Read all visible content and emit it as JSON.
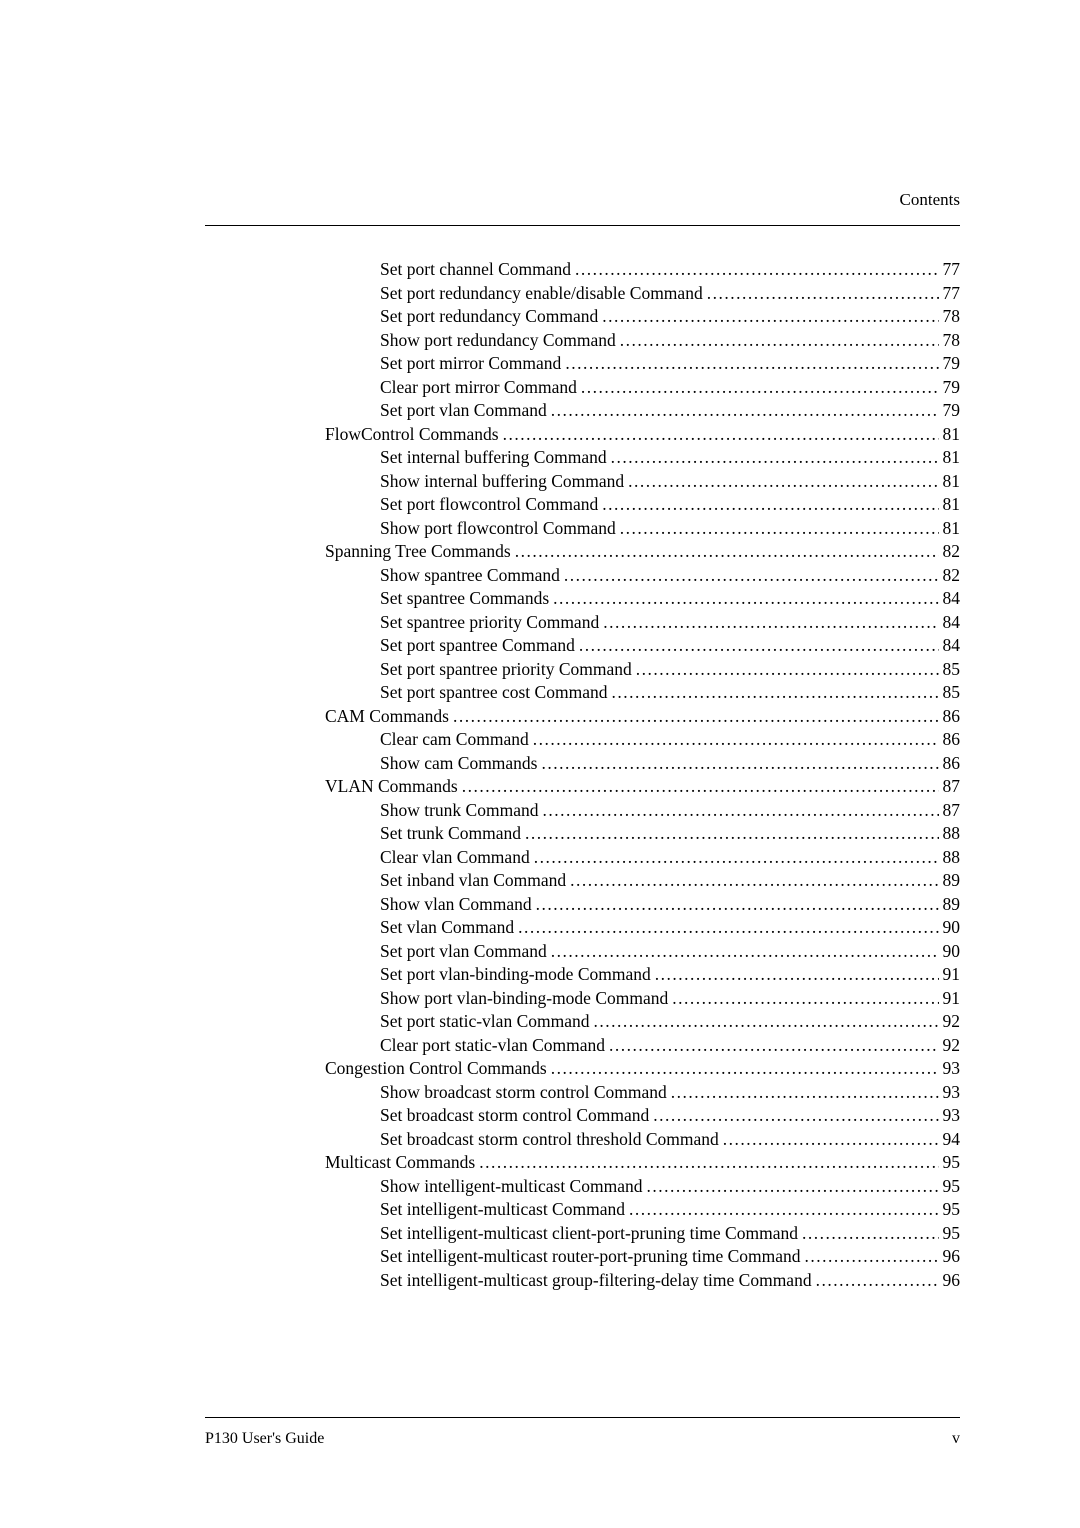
{
  "header": {
    "label": "Contents"
  },
  "footer": {
    "left": "P130 User's Guide",
    "right": "v"
  },
  "toc": {
    "entries": [
      {
        "indent": 1,
        "title": "Set port channel Command",
        "page": "77"
      },
      {
        "indent": 1,
        "title": "Set port redundancy enable/disable Command",
        "page": "77"
      },
      {
        "indent": 1,
        "title": "Set port redundancy Command",
        "page": "78"
      },
      {
        "indent": 1,
        "title": "Show port redundancy Command",
        "page": "78"
      },
      {
        "indent": 1,
        "title": "Set port mirror Command",
        "page": "79"
      },
      {
        "indent": 1,
        "title": "Clear port mirror Command",
        "page": "79"
      },
      {
        "indent": 1,
        "title": "Set port vlan Command",
        "page": "79"
      },
      {
        "indent": 0,
        "title": "FlowControl Commands",
        "page": " 81"
      },
      {
        "indent": 1,
        "title": "Set internal buffering Command",
        "page": "81"
      },
      {
        "indent": 1,
        "title": "Show internal buffering Command",
        "page": "81"
      },
      {
        "indent": 1,
        "title": "Set port flowcontrol Command",
        "page": "81"
      },
      {
        "indent": 1,
        "title": "Show port flowcontrol Command",
        "page": "81"
      },
      {
        "indent": 0,
        "title": "Spanning Tree Commands",
        "page": " 82"
      },
      {
        "indent": 1,
        "title": "Show spantree Command",
        "page": "82"
      },
      {
        "indent": 1,
        "title": "Set spantree Commands",
        "page": "84"
      },
      {
        "indent": 1,
        "title": "Set spantree priority Command",
        "page": "84"
      },
      {
        "indent": 1,
        "title": "Set port spantree Command",
        "page": "84"
      },
      {
        "indent": 1,
        "title": "Set port spantree priority Command",
        "page": "85"
      },
      {
        "indent": 1,
        "title": "Set port spantree cost Command",
        "page": "85"
      },
      {
        "indent": 0,
        "title": "CAM Commands",
        "page": " 86"
      },
      {
        "indent": 1,
        "title": "Clear cam Command",
        "page": "86"
      },
      {
        "indent": 1,
        "title": "Show cam Commands",
        "page": "86"
      },
      {
        "indent": 0,
        "title": "VLAN Commands",
        "page": " 87"
      },
      {
        "indent": 1,
        "title": "Show trunk Command",
        "page": "87"
      },
      {
        "indent": 1,
        "title": "Set trunk Command",
        "page": "88"
      },
      {
        "indent": 1,
        "title": "Clear vlan Command",
        "page": "88"
      },
      {
        "indent": 1,
        "title": "Set inband vlan Command",
        "page": "89"
      },
      {
        "indent": 1,
        "title": "Show vlan Command",
        "page": "89"
      },
      {
        "indent": 1,
        "title": "Set vlan Command",
        "page": "90"
      },
      {
        "indent": 1,
        "title": "Set port vlan Command",
        "page": "90"
      },
      {
        "indent": 1,
        "title": "Set port vlan-binding-mode Command",
        "page": "91"
      },
      {
        "indent": 1,
        "title": "Show port vlan-binding-mode Command",
        "page": "91"
      },
      {
        "indent": 1,
        "title": "Set port static-vlan Command",
        "page": "92"
      },
      {
        "indent": 1,
        "title": "Clear port static-vlan Command",
        "page": "92"
      },
      {
        "indent": 0,
        "title": "Congestion Control Commands",
        "page": " 93"
      },
      {
        "indent": 1,
        "title": "Show broadcast storm control Command",
        "page": "93"
      },
      {
        "indent": 1,
        "title": "Set broadcast storm control Command",
        "page": "93"
      },
      {
        "indent": 1,
        "title": "Set broadcast storm control threshold Command",
        "page": "94"
      },
      {
        "indent": 0,
        "title": "Multicast Commands",
        "page": " 95"
      },
      {
        "indent": 1,
        "title": "Show intelligent-multicast Command",
        "page": "95"
      },
      {
        "indent": 1,
        "title": "Set intelligent-multicast Command",
        "page": " 95"
      },
      {
        "indent": 1,
        "title": "Set intelligent-multicast client-port-pruning time Command",
        "page": "95"
      },
      {
        "indent": 1,
        "title": "Set intelligent-multicast router-port-pruning time Command",
        "page": "96"
      },
      {
        "indent": 1,
        "title": "Set intelligent-multicast group-filtering-delay time Command",
        "page": "96"
      }
    ]
  }
}
